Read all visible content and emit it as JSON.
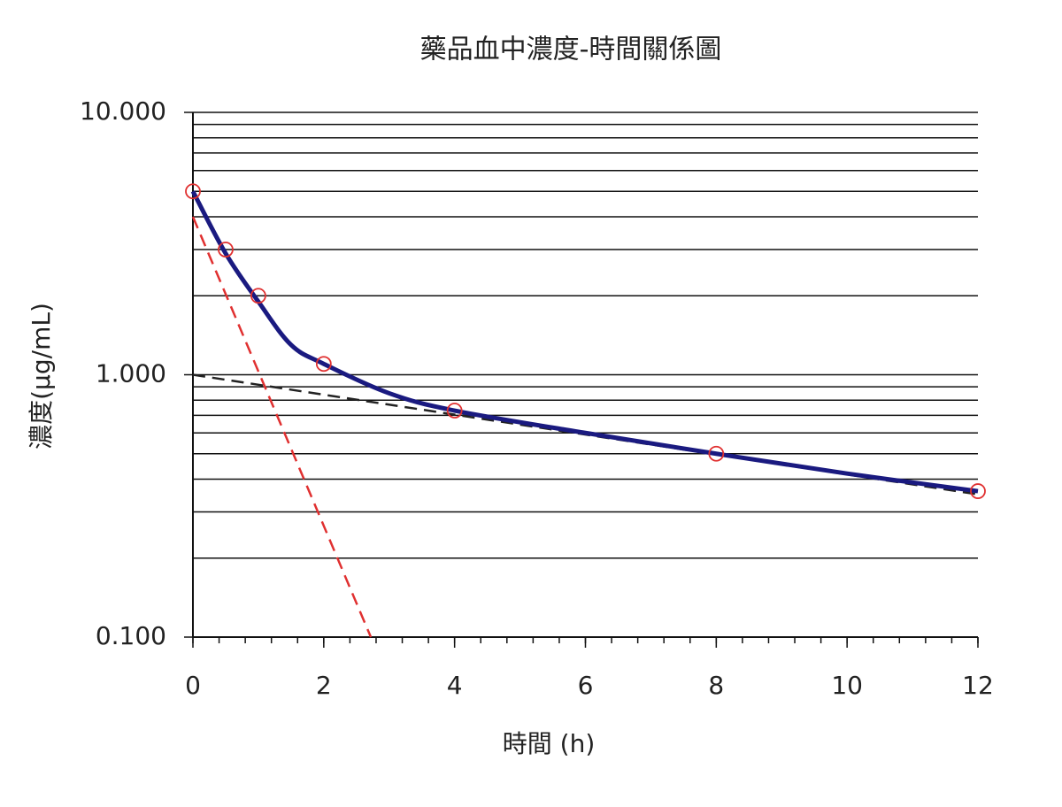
{
  "chart_data": {
    "type": "line",
    "title": "藥品血中濃度-時間關係圖",
    "x_label": "時間 (h)",
    "y_label": "濃度(μg/mL)",
    "xlim": [
      0,
      12
    ],
    "xticks": [
      0,
      2,
      4,
      6,
      8,
      10,
      12
    ],
    "ylim": [
      0.1,
      10
    ],
    "log_y": true,
    "yticks": [
      {
        "value": 0.1,
        "label": "0.100"
      },
      {
        "value": 1,
        "label": "1.000"
      },
      {
        "value": 10,
        "label": "10.000"
      }
    ],
    "grid": true,
    "series": [
      {
        "color": "#e03030",
        "style": "dashed",
        "x": [
          0,
          2.72
        ],
        "values": [
          4.0,
          0.1
        ]
      },
      {
        "color": "#222222",
        "style": "dashed",
        "x": [
          0,
          12
        ],
        "values": [
          1.0,
          0.35
        ]
      },
      {
        "color": "#1a1a80",
        "style": "solid",
        "x": [
          0,
          0.5,
          1,
          1.5,
          2,
          3,
          4,
          6,
          8,
          10,
          12
        ],
        "values": [
          5.0,
          2.9,
          1.9,
          1.3,
          1.1,
          0.85,
          0.73,
          0.6,
          0.5,
          0.42,
          0.36
        ]
      },
      {
        "color": "#e03030",
        "style": "markers",
        "x": [
          0,
          0.5,
          1,
          2,
          4,
          8,
          12
        ],
        "values": [
          5.0,
          3.0,
          2.0,
          1.1,
          0.73,
          0.5,
          0.36
        ]
      }
    ]
  }
}
